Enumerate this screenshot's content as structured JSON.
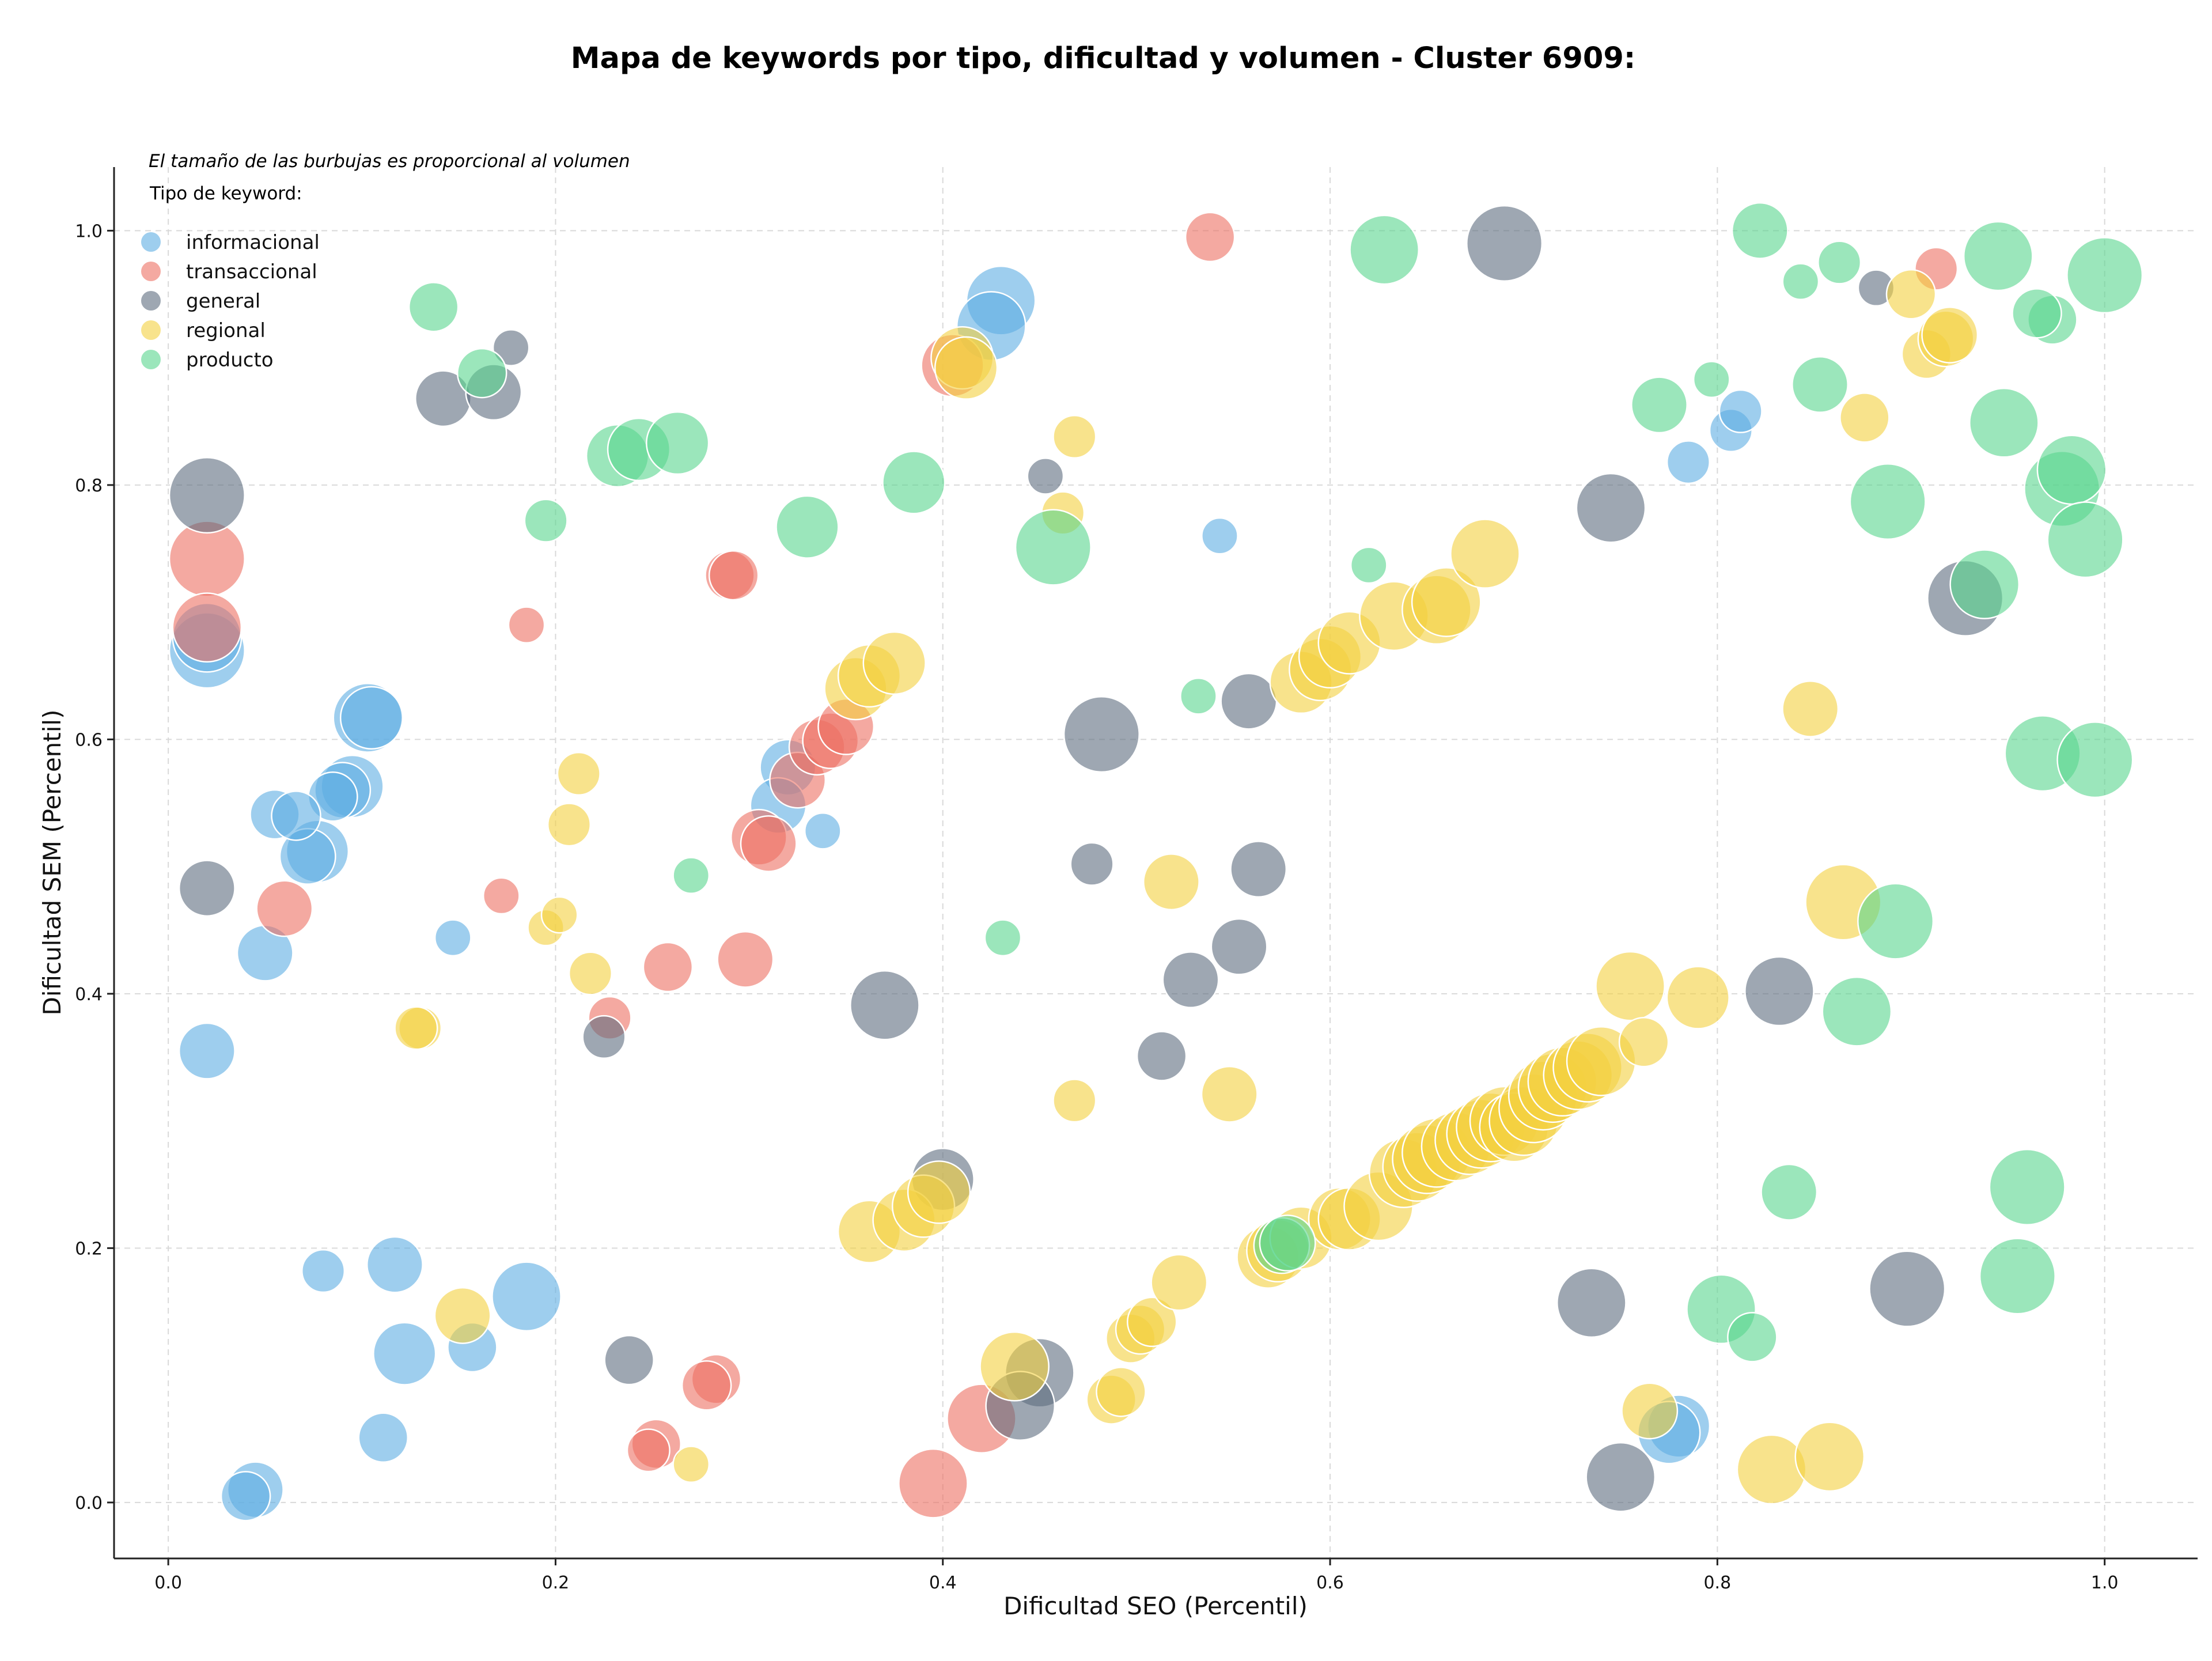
{
  "chart_data": {
    "type": "scatter",
    "title": "Mapa de keywords por tipo, dificultad y volumen - Cluster 6909:",
    "xlabel": "Dificultad SEO (Percentil)",
    "ylabel": "Dificultad SEM (Percentil)",
    "xlim": [
      -0.028,
      1.048
    ],
    "ylim": [
      -0.044,
      1.05
    ],
    "xticks": [
      0.0,
      0.2,
      0.4,
      0.6,
      0.8,
      1.0
    ],
    "yticks": [
      0.0,
      0.2,
      0.4,
      0.6,
      0.8,
      1.0
    ],
    "xtick_labels": [
      "0.0",
      "0.2",
      "0.4",
      "0.6",
      "0.8",
      "1.0"
    ],
    "ytick_labels": [
      "0.0",
      "0.2",
      "0.4",
      "0.6",
      "0.8",
      "1.0"
    ],
    "grid": true,
    "annotation": "El tamaño de las burbujas es proporcional al volumen",
    "legend_title": "Tipo de keyword:",
    "legend_position": "top-left",
    "series": [
      {
        "name": "informacional",
        "color": "#5dade2",
        "points": [
          [
            0.02,
            0.67,
            9
          ],
          [
            0.02,
            0.68,
            8
          ],
          [
            0.103,
            0.617,
            8
          ],
          [
            0.105,
            0.617,
            7
          ],
          [
            0.095,
            0.563,
            7
          ],
          [
            0.09,
            0.56,
            6
          ],
          [
            0.085,
            0.555,
            5
          ],
          [
            0.077,
            0.512,
            7
          ],
          [
            0.072,
            0.508,
            6
          ],
          [
            0.055,
            0.541,
            5
          ],
          [
            0.066,
            0.54,
            5
          ],
          [
            0.05,
            0.432,
            6
          ],
          [
            0.02,
            0.355,
            6
          ],
          [
            0.147,
            0.444,
            3
          ],
          [
            0.32,
            0.578,
            6
          ],
          [
            0.315,
            0.548,
            6
          ],
          [
            0.338,
            0.528,
            3
          ],
          [
            0.43,
            0.945,
            8
          ],
          [
            0.425,
            0.925,
            8
          ],
          [
            0.543,
            0.76,
            3
          ],
          [
            0.08,
            0.182,
            4
          ],
          [
            0.117,
            0.187,
            6
          ],
          [
            0.122,
            0.117,
            7
          ],
          [
            0.157,
            0.122,
            5
          ],
          [
            0.185,
            0.162,
            8
          ],
          [
            0.111,
            0.051,
            5
          ],
          [
            0.045,
            0.01,
            6
          ],
          [
            0.04,
            0.005,
            5
          ],
          [
            0.78,
            0.06,
            7
          ],
          [
            0.775,
            0.055,
            7
          ],
          [
            0.785,
            0.818,
            4
          ],
          [
            0.807,
            0.843,
            4
          ],
          [
            0.812,
            0.858,
            4
          ]
        ]
      },
      {
        "name": "transaccional",
        "color": "#ec7063",
        "points": [
          [
            0.02,
            0.742,
            9
          ],
          [
            0.02,
            0.688,
            8
          ],
          [
            0.06,
            0.467,
            6
          ],
          [
            0.185,
            0.69,
            3
          ],
          [
            0.172,
            0.477,
            3
          ],
          [
            0.228,
            0.381,
            4
          ],
          [
            0.258,
            0.421,
            5
          ],
          [
            0.298,
            0.427,
            6
          ],
          [
            0.29,
            0.729,
            5
          ],
          [
            0.292,
            0.729,
            5
          ],
          [
            0.305,
            0.523,
            6
          ],
          [
            0.31,
            0.518,
            6
          ],
          [
            0.325,
            0.568,
            6
          ],
          [
            0.335,
            0.594,
            6
          ],
          [
            0.342,
            0.599,
            6
          ],
          [
            0.35,
            0.61,
            6
          ],
          [
            0.405,
            0.894,
            7
          ],
          [
            0.538,
            0.995,
            5
          ],
          [
            0.283,
            0.097,
            5
          ],
          [
            0.278,
            0.092,
            5
          ],
          [
            0.252,
            0.046,
            5
          ],
          [
            0.248,
            0.041,
            4
          ],
          [
            0.42,
            0.066,
            8
          ],
          [
            0.395,
            0.015,
            8
          ],
          [
            0.913,
            0.97,
            4
          ]
        ]
      },
      {
        "name": "general",
        "color": "#5d6d7e",
        "points": [
          [
            0.02,
            0.792,
            9
          ],
          [
            0.02,
            0.483,
            6
          ],
          [
            0.142,
            0.868,
            6
          ],
          [
            0.168,
            0.873,
            6
          ],
          [
            0.177,
            0.908,
            3
          ],
          [
            0.225,
            0.366,
            4
          ],
          [
            0.37,
            0.391,
            8
          ],
          [
            0.4,
            0.254,
            7
          ],
          [
            0.238,
            0.112,
            5
          ],
          [
            0.45,
            0.102,
            8
          ],
          [
            0.44,
            0.076,
            8
          ],
          [
            0.453,
            0.807,
            3
          ],
          [
            0.482,
            0.604,
            9
          ],
          [
            0.477,
            0.502,
            4
          ],
          [
            0.513,
            0.351,
            5
          ],
          [
            0.528,
            0.411,
            6
          ],
          [
            0.553,
            0.437,
            6
          ],
          [
            0.558,
            0.63,
            6
          ],
          [
            0.563,
            0.498,
            6
          ],
          [
            0.69,
            0.99,
            9
          ],
          [
            0.745,
            0.782,
            8
          ],
          [
            0.735,
            0.157,
            8
          ],
          [
            0.75,
            0.02,
            8
          ],
          [
            0.832,
            0.402,
            8
          ],
          [
            0.898,
            0.168,
            9
          ],
          [
            0.882,
            0.955,
            3
          ],
          [
            0.928,
            0.711,
            9
          ]
        ]
      },
      {
        "name": "regional",
        "color": "#f4d03f",
        "points": [
          [
            0.13,
            0.373,
            4
          ],
          [
            0.128,
            0.373,
            4
          ],
          [
            0.152,
            0.147,
            6
          ],
          [
            0.195,
            0.452,
            3
          ],
          [
            0.202,
            0.462,
            3
          ],
          [
            0.207,
            0.533,
            4
          ],
          [
            0.212,
            0.573,
            4
          ],
          [
            0.218,
            0.416,
            4
          ],
          [
            0.27,
            0.03,
            3
          ],
          [
            0.362,
            0.213,
            7
          ],
          [
            0.38,
            0.222,
            7
          ],
          [
            0.39,
            0.233,
            7
          ],
          [
            0.398,
            0.244,
            7
          ],
          [
            0.355,
            0.64,
            7
          ],
          [
            0.362,
            0.65,
            7
          ],
          [
            0.375,
            0.66,
            7
          ],
          [
            0.41,
            0.9,
            7
          ],
          [
            0.412,
            0.892,
            7
          ],
          [
            0.437,
            0.107,
            8
          ],
          [
            0.462,
            0.778,
            4
          ],
          [
            0.468,
            0.838,
            4
          ],
          [
            0.468,
            0.316,
            4
          ],
          [
            0.487,
            0.081,
            5
          ],
          [
            0.492,
            0.087,
            5
          ],
          [
            0.497,
            0.129,
            5
          ],
          [
            0.502,
            0.136,
            5
          ],
          [
            0.508,
            0.142,
            5
          ],
          [
            0.518,
            0.488,
            6
          ],
          [
            0.522,
            0.173,
            6
          ],
          [
            0.548,
            0.321,
            6
          ],
          [
            0.568,
            0.193,
            7
          ],
          [
            0.573,
            0.198,
            7
          ],
          [
            0.585,
            0.208,
            7
          ],
          [
            0.585,
            0.645,
            7
          ],
          [
            0.595,
            0.655,
            7
          ],
          [
            0.6,
            0.665,
            7
          ],
          [
            0.61,
            0.676,
            7
          ],
          [
            0.605,
            0.223,
            7
          ],
          [
            0.61,
            0.223,
            7
          ],
          [
            0.625,
            0.233,
            8
          ],
          [
            0.633,
            0.697,
            8
          ],
          [
            0.638,
            0.259,
            8
          ],
          [
            0.645,
            0.264,
            8
          ],
          [
            0.65,
            0.27,
            8
          ],
          [
            0.655,
            0.275,
            8
          ],
          [
            0.665,
            0.28,
            8
          ],
          [
            0.672,
            0.285,
            8
          ],
          [
            0.678,
            0.29,
            8
          ],
          [
            0.683,
            0.295,
            8
          ],
          [
            0.69,
            0.3,
            8
          ],
          [
            0.695,
            0.295,
            8
          ],
          [
            0.7,
            0.3,
            8
          ],
          [
            0.705,
            0.31,
            8
          ],
          [
            0.71,
            0.32,
            8
          ],
          [
            0.715,
            0.326,
            8
          ],
          [
            0.72,
            0.331,
            8
          ],
          [
            0.728,
            0.336,
            8
          ],
          [
            0.733,
            0.342,
            8
          ],
          [
            0.74,
            0.347,
            8
          ],
          [
            0.655,
            0.702,
            8
          ],
          [
            0.66,
            0.708,
            8
          ],
          [
            0.68,
            0.746,
            8
          ],
          [
            0.755,
            0.406,
            8
          ],
          [
            0.762,
            0.362,
            5
          ],
          [
            0.79,
            0.397,
            7
          ],
          [
            0.765,
            0.072,
            6
          ],
          [
            0.828,
            0.026,
            8
          ],
          [
            0.858,
            0.036,
            8
          ],
          [
            0.848,
            0.624,
            6
          ],
          [
            0.865,
            0.472,
            9
          ],
          [
            0.876,
            0.853,
            5
          ],
          [
            0.9,
            0.95,
            5
          ],
          [
            0.908,
            0.903,
            5
          ],
          [
            0.918,
            0.915,
            6
          ],
          [
            0.92,
            0.918,
            6
          ]
        ]
      },
      {
        "name": "producto",
        "color": "#58d68d",
        "points": [
          [
            0.137,
            0.94,
            5
          ],
          [
            0.162,
            0.888,
            5
          ],
          [
            0.195,
            0.772,
            4
          ],
          [
            0.232,
            0.823,
            7
          ],
          [
            0.243,
            0.828,
            7
          ],
          [
            0.263,
            0.833,
            7
          ],
          [
            0.27,
            0.493,
            3
          ],
          [
            0.33,
            0.767,
            7
          ],
          [
            0.385,
            0.802,
            7
          ],
          [
            0.431,
            0.444,
            3
          ],
          [
            0.457,
            0.751,
            9
          ],
          [
            0.532,
            0.634,
            3
          ],
          [
            0.575,
            0.202,
            6
          ],
          [
            0.578,
            0.204,
            6
          ],
          [
            0.62,
            0.737,
            3
          ],
          [
            0.628,
            0.985,
            8
          ],
          [
            0.77,
            0.863,
            6
          ],
          [
            0.797,
            0.883,
            3
          ],
          [
            0.802,
            0.152,
            8
          ],
          [
            0.818,
            0.13,
            5
          ],
          [
            0.822,
            1.0,
            6
          ],
          [
            0.837,
            0.244,
            6
          ],
          [
            0.843,
            0.96,
            3
          ],
          [
            0.853,
            0.879,
            6
          ],
          [
            0.863,
            0.975,
            4
          ],
          [
            0.872,
            0.386,
            8
          ],
          [
            0.888,
            0.787,
            9
          ],
          [
            0.892,
            0.457,
            9
          ],
          [
            0.938,
            0.722,
            8
          ],
          [
            0.948,
            0.849,
            8
          ],
          [
            0.945,
            0.98,
            8
          ],
          [
            0.96,
            0.248,
            9
          ],
          [
            0.955,
            0.178,
            9
          ],
          [
            0.968,
            0.589,
            9
          ],
          [
            0.973,
            0.93,
            5
          ],
          [
            0.965,
            0.935,
            5
          ],
          [
            0.978,
            0.797,
            9
          ],
          [
            0.983,
            0.812,
            8
          ],
          [
            0.99,
            0.757,
            9
          ],
          [
            0.995,
            0.584,
            9
          ],
          [
            1.0,
            0.965,
            9
          ]
        ]
      }
    ]
  }
}
